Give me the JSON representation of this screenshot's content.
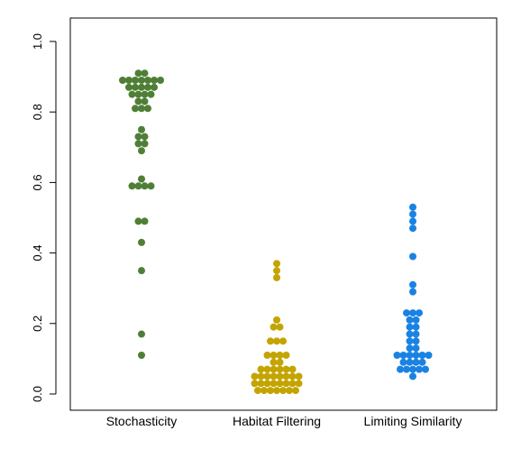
{
  "chart_data": {
    "type": "scatter",
    "subtype": "beeswarm",
    "title": "",
    "xlabel": "",
    "ylabel": "",
    "ylim": [
      0.0,
      1.0
    ],
    "yticks": [
      "0.0",
      "0.2",
      "0.4",
      "0.6",
      "0.8",
      "1.0"
    ],
    "grid": false,
    "categories": [
      "Stochasticity",
      "Habitat Filtering",
      "Limiting Similarity"
    ],
    "colors": [
      "#4f7f36",
      "#c4a400",
      "#1a82e2"
    ],
    "series": [
      {
        "category": "Stochasticity",
        "values": [
          0.91,
          0.91,
          0.89,
          0.89,
          0.89,
          0.89,
          0.89,
          0.89,
          0.89,
          0.87,
          0.87,
          0.87,
          0.87,
          0.87,
          0.85,
          0.85,
          0.85,
          0.85,
          0.83,
          0.83,
          0.81,
          0.81,
          0.81,
          0.75,
          0.73,
          0.73,
          0.71,
          0.71,
          0.69,
          0.61,
          0.59,
          0.59,
          0.59,
          0.59,
          0.49,
          0.49,
          0.43,
          0.35,
          0.17,
          0.11
        ]
      },
      {
        "category": "Habitat Filtering",
        "values": [
          0.37,
          0.35,
          0.33,
          0.21,
          0.19,
          0.19,
          0.15,
          0.15,
          0.15,
          0.11,
          0.11,
          0.11,
          0.11,
          0.09,
          0.09,
          0.07,
          0.07,
          0.07,
          0.07,
          0.07,
          0.07,
          0.05,
          0.05,
          0.05,
          0.05,
          0.05,
          0.05,
          0.05,
          0.05,
          0.03,
          0.03,
          0.03,
          0.03,
          0.03,
          0.03,
          0.03,
          0.03,
          0.01,
          0.01,
          0.01,
          0.01,
          0.01,
          0.01,
          0.01
        ]
      },
      {
        "category": "Limiting Similarity",
        "values": [
          0.53,
          0.51,
          0.49,
          0.47,
          0.39,
          0.31,
          0.29,
          0.23,
          0.23,
          0.23,
          0.21,
          0.21,
          0.19,
          0.19,
          0.17,
          0.17,
          0.15,
          0.15,
          0.13,
          0.13,
          0.11,
          0.11,
          0.11,
          0.11,
          0.11,
          0.11,
          0.09,
          0.09,
          0.09,
          0.09,
          0.07,
          0.07,
          0.07,
          0.07,
          0.07,
          0.05
        ]
      }
    ]
  }
}
